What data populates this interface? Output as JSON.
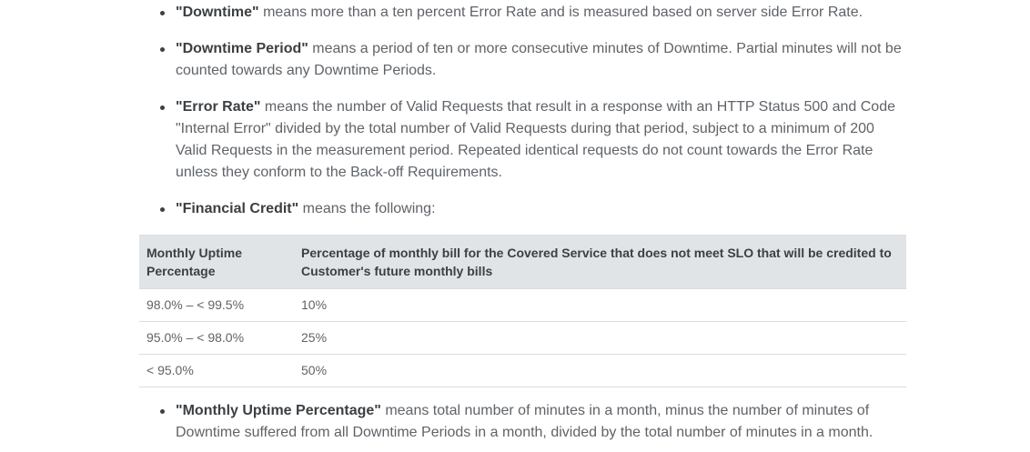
{
  "definitions_top": [
    {
      "term": "\"Downtime\"",
      "text": " means more than a ten percent Error Rate and is measured based on server side Error Rate."
    },
    {
      "term": "\"Downtime Period\"",
      "text": " means a period of ten or more consecutive minutes of Downtime. Partial minutes will not be counted towards any Downtime Periods."
    },
    {
      "term": "\"Error Rate\"",
      "text": " means the number of Valid Requests that result in a response with an HTTP Status 500 and Code \"Internal Error\" divided by the total number of Valid Requests during that period, subject to a minimum of 200 Valid Requests in the measurement period. Repeated identical requests do not count towards the Error Rate unless they conform to the Back-off Requirements."
    },
    {
      "term": "\"Financial Credit\"",
      "text": " means the following:"
    }
  ],
  "credit_table": {
    "headers": [
      "Monthly Uptime Percentage",
      "Percentage of monthly bill for the Covered Service that does not meet SLO that will be credited to Customer's future monthly bills"
    ],
    "rows": [
      [
        "98.0% – < 99.5%",
        "10%"
      ],
      [
        "95.0% – < 98.0%",
        "25%"
      ],
      [
        "< 95.0%",
        "50%"
      ]
    ]
  },
  "definitions_bottom": [
    {
      "term": "\"Monthly Uptime Percentage\"",
      "text": " means total number of minutes in a month, minus the number of minutes of Downtime suffered from all Downtime Periods in a month, divided by the total number of minutes in a month."
    }
  ]
}
